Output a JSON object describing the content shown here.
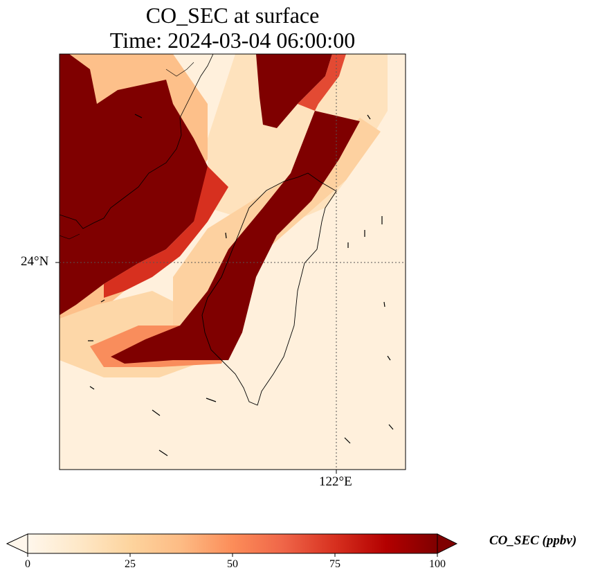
{
  "title": {
    "line1": "CO_SEC at surface",
    "line2": "Time: 2024-03-04 06:00:00"
  },
  "map": {
    "lat_label": "24°N",
    "lon_label": "122°E",
    "region": "Taiwan Strait / Taiwan",
    "colormap": "OrRd",
    "colormap_stops": [
      "#fff7ec",
      "#fee8c8",
      "#fdd49e",
      "#fdbb84",
      "#fc8d59",
      "#ef6548",
      "#d7301f",
      "#b30000",
      "#7f0000"
    ]
  },
  "colorbar": {
    "label": "CO_SEC (ppbv)",
    "min": 0,
    "max": 100,
    "extend": "both",
    "ticks": [
      "0",
      "25",
      "50",
      "75",
      "100"
    ]
  }
}
